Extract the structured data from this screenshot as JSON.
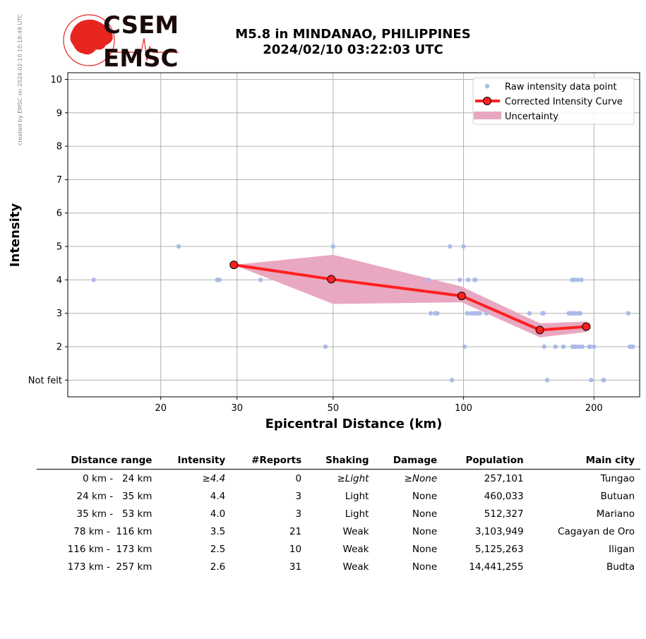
{
  "header": {
    "title_line1": "M5.8 in MINDANAO, PHILIPPINES",
    "title_line2": "2024/02/10 03:22:03 UTC",
    "credit": "created by EMSC on 2024-02-10 10:18:49 UTC",
    "logo_text_top": "CSEM",
    "logo_text_bottom": "EMSC"
  },
  "chart_data": {
    "type": "scatter",
    "xscale": "log",
    "xlim": [
      12.2,
      255
    ],
    "ylim": [
      0.5,
      10.2
    ],
    "xticks": [
      20,
      30,
      50,
      100,
      200
    ],
    "yticks": [
      {
        "value": 1,
        "label": "Not felt"
      },
      {
        "value": 2,
        "label": "2"
      },
      {
        "value": 3,
        "label": "3"
      },
      {
        "value": 4,
        "label": "4"
      },
      {
        "value": 5,
        "label": "5"
      },
      {
        "value": 6,
        "label": "6"
      },
      {
        "value": 7,
        "label": "7"
      },
      {
        "value": 8,
        "label": "8"
      },
      {
        "value": 9,
        "label": "9"
      },
      {
        "value": 10,
        "label": "10"
      }
    ],
    "xlabel": "Epicentral Distance (km)",
    "ylabel": "Intensity",
    "grid": true,
    "legend_position": "top-right",
    "legend": [
      "Raw intensity data point",
      "Corrected Intensity Curve",
      "Uncertainty"
    ],
    "colors": {
      "raw": "#aabbe8",
      "curve": "#ff2020",
      "uncertainty": "#e9a8c1"
    },
    "raw_points": [
      {
        "x": 14,
        "y": 4
      },
      {
        "x": 22,
        "y": 5
      },
      {
        "x": 27,
        "y": 4
      },
      {
        "x": 27.3,
        "y": 4
      },
      {
        "x": 34,
        "y": 4
      },
      {
        "x": 48,
        "y": 2
      },
      {
        "x": 50,
        "y": 5
      },
      {
        "x": 83,
        "y": 4
      },
      {
        "x": 84,
        "y": 3
      },
      {
        "x": 86,
        "y": 3
      },
      {
        "x": 87,
        "y": 3
      },
      {
        "x": 93,
        "y": 5
      },
      {
        "x": 94,
        "y": 1
      },
      {
        "x": 98,
        "y": 4
      },
      {
        "x": 100,
        "y": 5
      },
      {
        "x": 100.5,
        "y": 2
      },
      {
        "x": 102,
        "y": 3
      },
      {
        "x": 102.5,
        "y": 4
      },
      {
        "x": 104,
        "y": 3
      },
      {
        "x": 105.5,
        "y": 3
      },
      {
        "x": 106,
        "y": 4
      },
      {
        "x": 106.5,
        "y": 4
      },
      {
        "x": 107,
        "y": 3
      },
      {
        "x": 108,
        "y": 3
      },
      {
        "x": 109,
        "y": 3
      },
      {
        "x": 113,
        "y": 3
      },
      {
        "x": 142,
        "y": 3
      },
      {
        "x": 152,
        "y": 3
      },
      {
        "x": 153,
        "y": 3
      },
      {
        "x": 153.5,
        "y": 2
      },
      {
        "x": 156,
        "y": 1
      },
      {
        "x": 163,
        "y": 2
      },
      {
        "x": 170,
        "y": 2
      },
      {
        "x": 175,
        "y": 3
      },
      {
        "x": 176,
        "y": 3
      },
      {
        "x": 177,
        "y": 3
      },
      {
        "x": 178,
        "y": 4
      },
      {
        "x": 178.5,
        "y": 2
      },
      {
        "x": 179,
        "y": 3
      },
      {
        "x": 180,
        "y": 4
      },
      {
        "x": 180.5,
        "y": 2
      },
      {
        "x": 181,
        "y": 3
      },
      {
        "x": 182,
        "y": 2
      },
      {
        "x": 183,
        "y": 4
      },
      {
        "x": 184,
        "y": 3
      },
      {
        "x": 185,
        "y": 2
      },
      {
        "x": 186,
        "y": 3
      },
      {
        "x": 187,
        "y": 4
      },
      {
        "x": 188,
        "y": 2
      },
      {
        "x": 195,
        "y": 2
      },
      {
        "x": 196,
        "y": 2
      },
      {
        "x": 197,
        "y": 1
      },
      {
        "x": 200,
        "y": 2
      },
      {
        "x": 210,
        "y": 1
      },
      {
        "x": 211,
        "y": 1
      },
      {
        "x": 240,
        "y": 3
      },
      {
        "x": 242,
        "y": 2
      },
      {
        "x": 244,
        "y": 2
      },
      {
        "x": 246,
        "y": 2
      }
    ],
    "curve": {
      "x": [
        29.5,
        49.5,
        99,
        150,
        192
      ],
      "y": [
        4.45,
        4.02,
        3.52,
        2.5,
        2.6
      ]
    },
    "uncertainty": {
      "x": [
        29.5,
        50,
        99,
        150,
        192
      ],
      "upper": [
        4.45,
        4.75,
        3.8,
        2.7,
        2.75
      ],
      "lower": [
        4.45,
        3.28,
        3.33,
        2.28,
        2.44
      ]
    }
  },
  "table": {
    "headers": [
      "Distance range",
      "Intensity",
      "#Reports",
      "Shaking",
      "Damage",
      "Population",
      "Main city"
    ],
    "rows": [
      {
        "range": "0 km -   24 km",
        "intensity": "≥4.4",
        "reports": "0",
        "shaking": "≥Light",
        "damage": "≥None",
        "population": "257,101",
        "city": "Tungao",
        "italic": true
      },
      {
        "range": "24 km -   35 km",
        "intensity": "4.4",
        "reports": "3",
        "shaking": "Light",
        "damage": "None",
        "population": "460,033",
        "city": "Butuan",
        "italic": false
      },
      {
        "range": "35 km -   53 km",
        "intensity": "4.0",
        "reports": "3",
        "shaking": "Light",
        "damage": "None",
        "population": "512,327",
        "city": "Mariano",
        "italic": false
      },
      {
        "range": "78 km -  116 km",
        "intensity": "3.5",
        "reports": "21",
        "shaking": "Weak",
        "damage": "None",
        "population": "3,103,949",
        "city": "Cagayan de Oro",
        "italic": false
      },
      {
        "range": "116 km -  173 km",
        "intensity": "2.5",
        "reports": "10",
        "shaking": "Weak",
        "damage": "None",
        "population": "5,125,263",
        "city": "Iligan",
        "italic": false
      },
      {
        "range": "173 km -  257 km",
        "intensity": "2.6",
        "reports": "31",
        "shaking": "Weak",
        "damage": "None",
        "population": "14,441,255",
        "city": "Budta",
        "italic": false
      }
    ]
  }
}
